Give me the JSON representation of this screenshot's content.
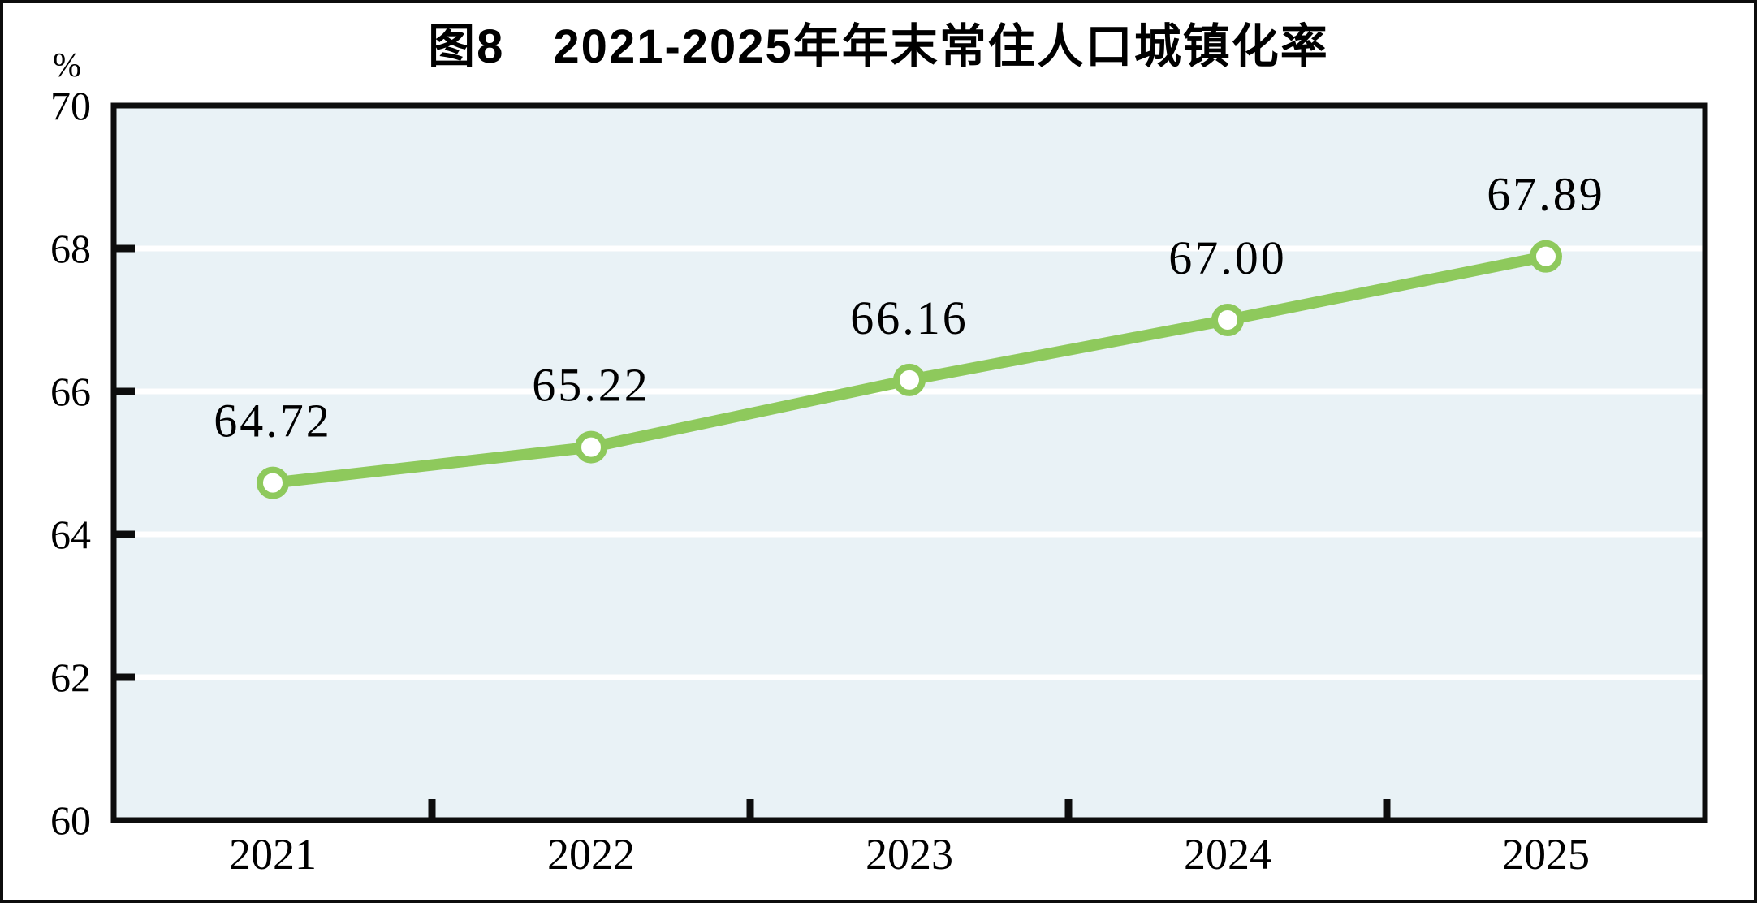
{
  "chart_data": {
    "type": "line",
    "title": "图8　2021-2025年年末常住人口城镇化率",
    "unit_label": "%",
    "categories": [
      "2021",
      "2022",
      "2023",
      "2024",
      "2025"
    ],
    "values": [
      64.72,
      65.22,
      66.16,
      67.0,
      67.89
    ],
    "point_labels": [
      "64.72",
      "65.22",
      "66.16",
      "67.00",
      "67.89"
    ],
    "ytick_labels": [
      "60",
      "62",
      "64",
      "66",
      "68",
      "70"
    ],
    "yticks": [
      60,
      62,
      64,
      66,
      68,
      70
    ],
    "ylim": [
      60,
      70
    ],
    "xlabel": "",
    "ylabel": "",
    "grid": "horizontal-white-gridlines",
    "legend": "none",
    "colors": {
      "line": "#8ec95c",
      "marker_fill": "#ffffff",
      "marker_stroke": "#8ec95c",
      "plot_background": "#e9f2f6",
      "gridline": "#ffffff",
      "axis": "#0d0d0d",
      "text": "#000000"
    }
  }
}
